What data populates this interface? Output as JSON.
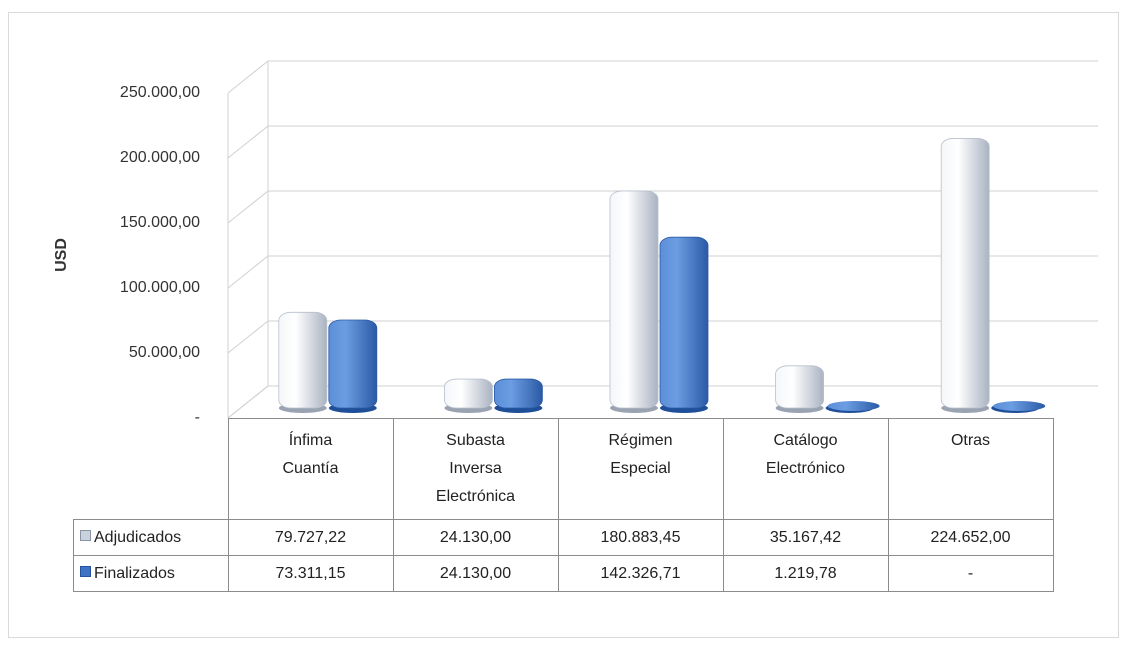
{
  "chart_data": {
    "type": "bar3d",
    "y_label": "USD",
    "categories": [
      "Ínfima Cuantía",
      "Subasta Inversa Electrónica",
      "Régimen Especial",
      "Catálogo Electrónico",
      "Otras"
    ],
    "series": [
      {
        "name": "Adjudicados",
        "color": "#c9d1dd",
        "values": [
          79727.22,
          24130,
          180883.45,
          35167.42,
          224652
        ],
        "value_labels": [
          "79.727,22",
          "24.130,00",
          "180.883,45",
          "35.167,42",
          "224.652,00"
        ]
      },
      {
        "name": "Finalizados",
        "color": "#3d72c4",
        "values": [
          73311.15,
          24130,
          142326.71,
          1219.78,
          0
        ],
        "value_labels": [
          "73.311,15",
          "24.130,00",
          "142.326,71",
          "1.219,78",
          "-"
        ]
      }
    ],
    "ylim": [
      0,
      250000
    ],
    "yticks": [
      {
        "value": 0,
        "label": "-"
      },
      {
        "value": 50000,
        "label": "50.000,00"
      },
      {
        "value": 100000,
        "label": "100.000,00"
      },
      {
        "value": 150000,
        "label": "150.000,00"
      },
      {
        "value": 200000,
        "label": "200.000,00"
      },
      {
        "value": 250000,
        "label": "250.000,00"
      }
    ],
    "grid": true,
    "data_table": true
  }
}
